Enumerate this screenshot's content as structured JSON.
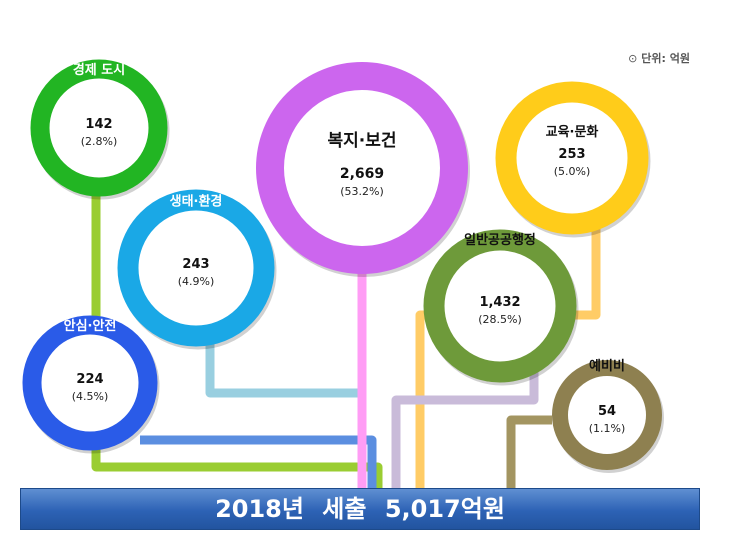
{
  "unit_note": "단위: 억원",
  "banner": "2018년 세출 5,017억원",
  "chart_data": {
    "type": "bubble-ring",
    "title": "2018년 세출 5,017억원",
    "unit": "억원",
    "total": 5017,
    "items": [
      {
        "name": "경제 도시",
        "value": 142,
        "pct": "(2.8%)",
        "value_label": "142",
        "color": "#22b523"
      },
      {
        "name": "생태·환경",
        "value": 243,
        "pct": "(4.9%)",
        "value_label": "243",
        "color": "#1aa8e6"
      },
      {
        "name": "안심·안전",
        "value": 224,
        "pct": "(4.5%)",
        "value_label": "224",
        "color": "#2a5be8"
      },
      {
        "name": "복지·보건",
        "value": 2669,
        "pct": "(53.2%)",
        "value_label": "2,669",
        "color": "#cc66ee"
      },
      {
        "name": "교육·문화",
        "value": 253,
        "pct": "(5.0%)",
        "value_label": "253",
        "color": "#ffcc1a"
      },
      {
        "name": "일반공공행정",
        "value": 1432,
        "pct": "(28.5%)",
        "value_label": "1,432",
        "color": "#6e9a3a"
      },
      {
        "name": "예비비",
        "value": 54,
        "pct": "(1.1%)",
        "value_label": "54",
        "color": "#8e8050"
      }
    ]
  }
}
